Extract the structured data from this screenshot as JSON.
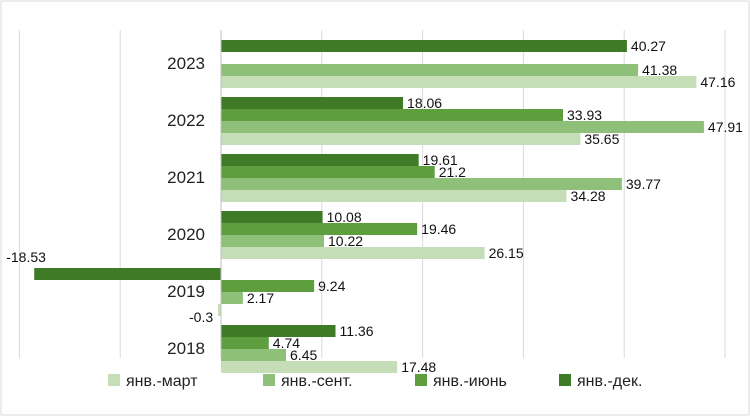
{
  "chart_data": {
    "type": "bar",
    "orientation": "horizontal",
    "categories": [
      "2023",
      "2022",
      "2021",
      "2020",
      "2019",
      "2018"
    ],
    "series": [
      {
        "name": "янв.-март",
        "color": "#c5deb8",
        "values": [
          47.16,
          35.65,
          34.28,
          26.15,
          -0.3,
          17.48
        ]
      },
      {
        "name": "янв.-сент.",
        "color": "#8fc07a",
        "values": [
          41.38,
          47.91,
          39.77,
          10.22,
          2.17,
          6.45
        ]
      },
      {
        "name": "янв.-июнь",
        "color": "#5e9e3f",
        "values": [
          null,
          33.93,
          21.2,
          19.46,
          9.24,
          4.74
        ]
      },
      {
        "name": "янв.-дек.",
        "color": "#3f7a26",
        "values": [
          40.27,
          18.06,
          19.61,
          10.08,
          -18.53,
          11.36
        ]
      }
    ],
    "data_labels": {
      "янв.-март": [
        "47.16",
        "35.65",
        "34.28",
        "26.15",
        "-0.3",
        "17.48"
      ],
      "янв.-сент.": [
        "41.38",
        "47.91",
        "39.77",
        "10.22",
        "2.17",
        "6.45"
      ],
      "янв.-июнь": [
        "",
        "33.93",
        "21.2",
        "19.46",
        "9.24",
        "4.74"
      ],
      "янв.-дек.": [
        "40.27",
        "18.06",
        "19.61",
        "10.08",
        "-18.53",
        "11.36"
      ]
    },
    "xlim": [
      -20,
      50
    ],
    "gridlines": true,
    "legend_position": "bottom",
    "title": "",
    "xlabel": "",
    "ylabel": ""
  }
}
